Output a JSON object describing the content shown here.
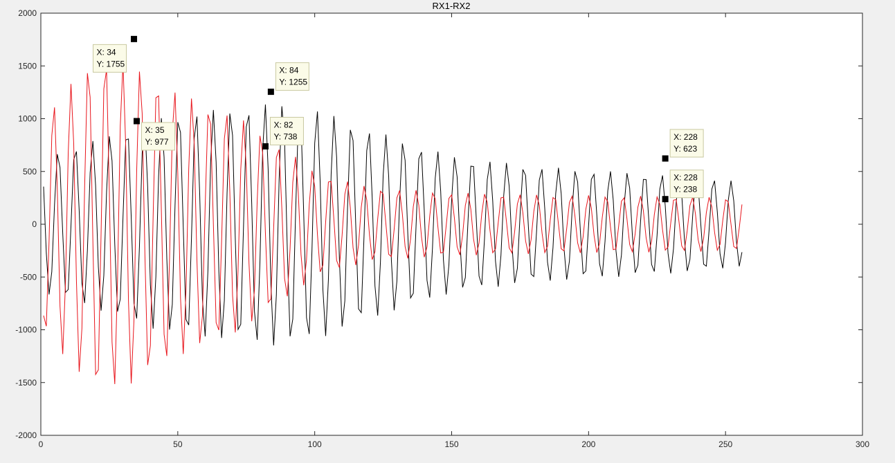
{
  "chart_data": {
    "type": "line",
    "title": "RX1-RX2",
    "xlabel": "",
    "ylabel": "",
    "xlim": [
      0,
      300
    ],
    "ylim": [
      -2000,
      2000
    ],
    "x_ticks": [
      0,
      50,
      100,
      150,
      200,
      250,
      300
    ],
    "y_ticks": [
      -2000,
      -1500,
      -1000,
      -500,
      0,
      500,
      1000,
      1500,
      2000
    ],
    "grid": false,
    "envelope": {
      "x": [
        0,
        20,
        35,
        50,
        70,
        85,
        100,
        120,
        150,
        180,
        210,
        240,
        256
      ],
      "amp_black": [
        650,
        800,
        950,
        1050,
        1100,
        1150,
        1100,
        900,
        650,
        550,
        500,
        450,
        400
      ],
      "amp_red": [
        1000,
        1600,
        1500,
        1250,
        1050,
        800,
        500,
        350,
        300,
        280,
        270,
        260,
        250
      ]
    },
    "series": [
      {
        "color": "#000000",
        "x_start": 1,
        "x_end": 256,
        "period": 6.3,
        "phase_deg": 0,
        "offset": 0
      },
      {
        "color": "#e8141b",
        "x_start": 1,
        "x_end": 256,
        "period": 6.3,
        "phase_deg": 90,
        "offset": 0
      }
    ],
    "datatips": [
      {
        "x": 34,
        "y": 1755,
        "label_x": "X: 34",
        "label_y": "Y: 1755",
        "box": "above-left"
      },
      {
        "x": 35,
        "y": 977,
        "label_x": "X: 35",
        "label_y": "Y: 977",
        "box": "below-right"
      },
      {
        "x": 84,
        "y": 1255,
        "label_x": "X: 84",
        "label_y": "Y: 1255",
        "box": "above-right"
      },
      {
        "x": 82,
        "y": 738,
        "label_x": "X: 82",
        "label_y": "Y: 738",
        "box": "above-right"
      },
      {
        "x": 228,
        "y": 623,
        "label_x": "X: 228",
        "label_y": "Y: 623",
        "box": "above-right"
      },
      {
        "x": 228,
        "y": 238,
        "label_x": "X: 228",
        "label_y": "Y: 238",
        "box": "above-right"
      }
    ]
  }
}
